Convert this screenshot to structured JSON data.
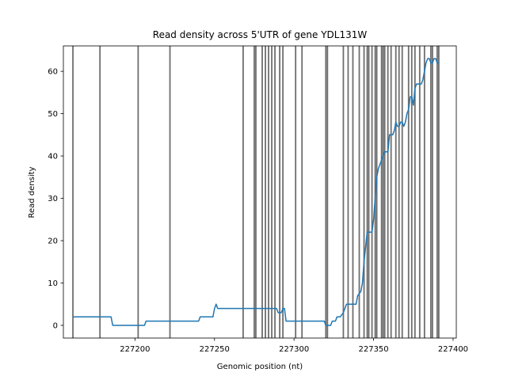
{
  "chart_data": {
    "type": "line",
    "title": "Read density across 5'UTR of gene YDL131W",
    "xlabel": "Genomic position (nt)",
    "ylabel": "Read density",
    "xlim": [
      227155,
      227402
    ],
    "ylim": [
      -3,
      66
    ],
    "xticks": [
      227200,
      227250,
      227300,
      227350,
      227400
    ],
    "yticks": [
      0,
      10,
      20,
      30,
      40,
      50,
      60
    ],
    "grid": false,
    "colors": {
      "line": "#1f77b4",
      "vlines": "#555555",
      "axes": "#000000"
    },
    "vlines": [
      227161,
      227178,
      227202,
      227222,
      227268,
      227275,
      227276,
      227280,
      227282,
      227284,
      227286,
      227288,
      227291,
      227293,
      227301,
      227305,
      227320,
      227321,
      227331,
      227334,
      227337,
      227341,
      227344,
      227346,
      227347,
      227349,
      227351,
      227352,
      227355,
      227356,
      227357,
      227359,
      227361,
      227364,
      227366,
      227368,
      227372,
      227374,
      227376,
      227379,
      227382,
      227386,
      227387,
      227390,
      227391
    ],
    "series": [
      {
        "x": [
          227161,
          227185,
          227186,
          227206,
          227207,
          227240,
          227241,
          227249,
          227250,
          227251,
          227252,
          227289,
          227290,
          227292,
          227293,
          227294,
          227295,
          227319,
          227320,
          227323,
          227324,
          227326,
          227327,
          227329,
          227331,
          227332,
          227333,
          227334,
          227336,
          227339,
          227340,
          227342,
          227343,
          227344,
          227346,
          227347,
          227348,
          227349,
          227350,
          227351,
          227352,
          227353,
          227355,
          227356,
          227357,
          227358,
          227359,
          227360,
          227361,
          227362,
          227363,
          227364,
          227365,
          227366,
          227367,
          227368,
          227369,
          227370,
          227371,
          227372,
          227373,
          227374,
          227375,
          227376,
          227377,
          227378,
          227379,
          227380,
          227381,
          227382,
          227383,
          227384,
          227385,
          227386,
          227387,
          227388,
          227389,
          227390,
          227391
        ],
        "values": [
          2,
          2,
          0,
          0,
          1,
          1,
          2,
          2,
          4,
          5,
          4,
          4,
          3,
          3,
          4,
          4,
          1,
          1,
          0,
          0,
          1,
          1,
          2,
          2,
          3,
          4,
          5,
          5,
          5,
          5,
          7,
          8,
          10,
          15,
          22,
          22,
          22,
          22,
          25,
          30,
          35,
          37,
          39,
          40,
          41,
          41,
          41,
          45,
          45,
          45,
          46,
          48,
          47,
          47,
          48,
          48,
          47,
          48,
          50,
          51,
          54,
          54,
          52,
          56,
          57,
          57,
          57,
          57,
          58,
          60,
          62,
          63,
          63,
          62,
          62,
          63,
          63,
          62,
          62
        ]
      }
    ]
  }
}
